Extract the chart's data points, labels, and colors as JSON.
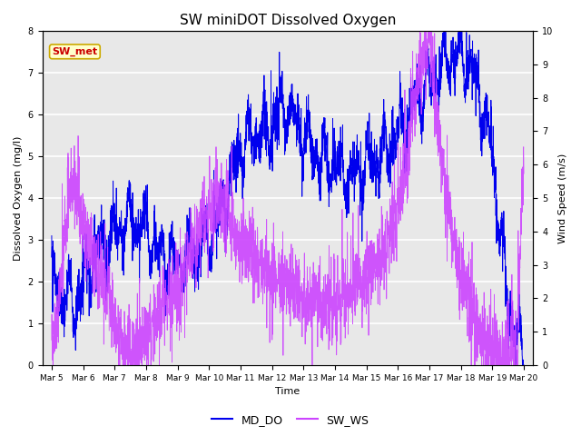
{
  "title": "SW miniDOT Dissolved Oxygen",
  "xlabel": "Time",
  "ylabel_left": "Dissolved Oxygen (mg/l)",
  "ylabel_right": "Wind Speed (m/s)",
  "ylim_left": [
    0.0,
    8.0
  ],
  "ylim_right": [
    0.0,
    10.0
  ],
  "yticks_left": [
    0.0,
    1.0,
    2.0,
    3.0,
    4.0,
    5.0,
    6.0,
    7.0,
    8.0
  ],
  "yticks_right": [
    0.0,
    1.0,
    2.0,
    3.0,
    4.0,
    5.0,
    6.0,
    7.0,
    8.0,
    9.0,
    10.0
  ],
  "xtick_labels": [
    "Mar 5",
    "Mar 6",
    "Mar 7",
    "Mar 8",
    "Mar 9",
    "Mar 10",
    "Mar 11",
    "Mar 12",
    "Mar 13",
    "Mar 14",
    "Mar 15",
    "Mar 16",
    "Mar 17",
    "Mar 18",
    "Mar 19",
    "Mar 20"
  ],
  "color_DO": "#0000ee",
  "color_WS": "#cc44ff",
  "legend_DO": "MD_DO",
  "legend_WS": "SW_WS",
  "annotation_text": "SW_met",
  "annotation_color": "#cc0000",
  "annotation_bg": "#ffffcc",
  "annotation_border": "#ccaa00",
  "plot_bg": "#e8e8e8",
  "grid_color": "#ffffff",
  "n_points": 3000,
  "seed": 7
}
